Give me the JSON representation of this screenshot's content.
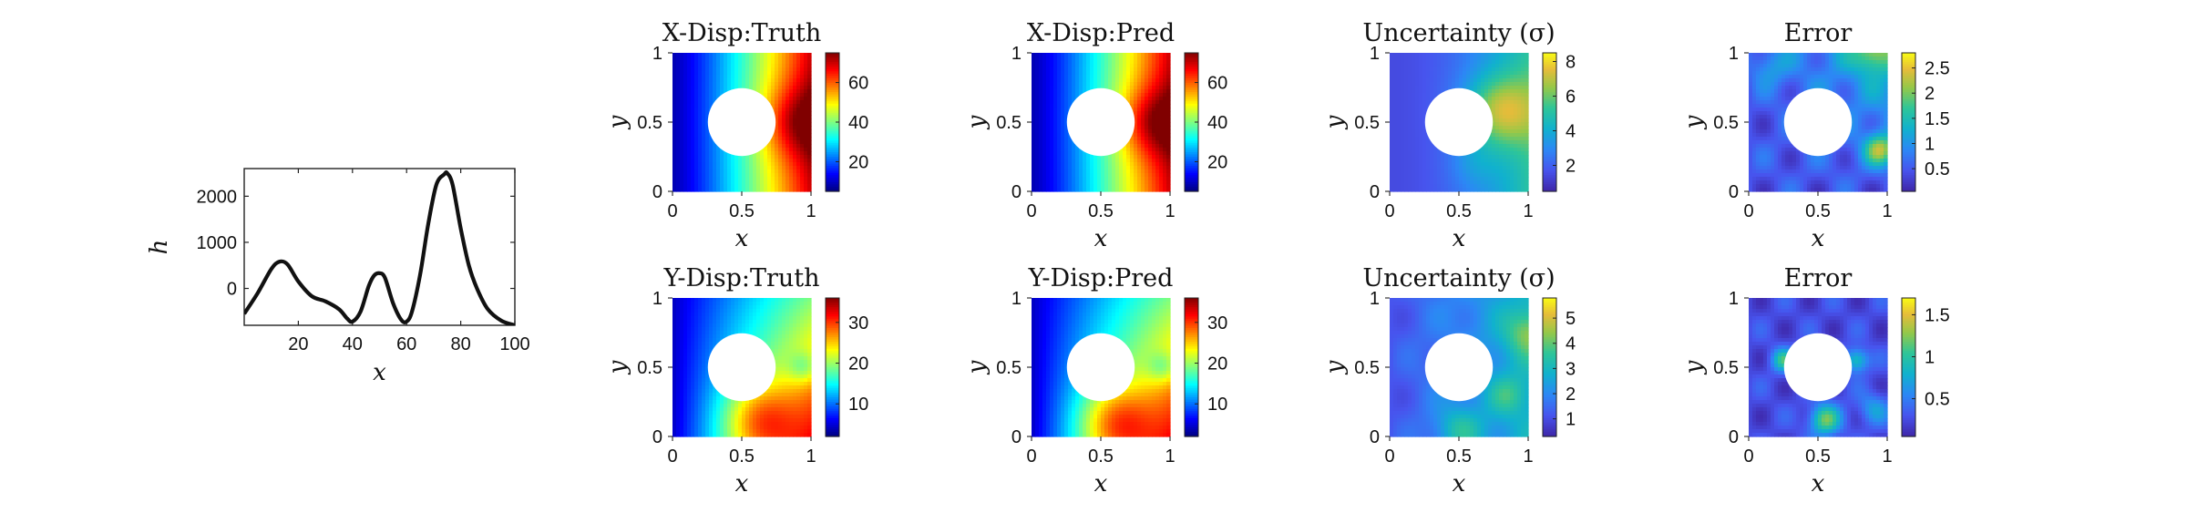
{
  "chart_data": [
    {
      "id": "h",
      "type": "line",
      "xlabel": "x",
      "ylabel": "h",
      "xlim": [
        0,
        100
      ],
      "ylim": [
        -800,
        2600
      ],
      "xticks": [
        20,
        40,
        60,
        80,
        100
      ],
      "yticks": [
        0,
        1000,
        2000
      ],
      "x": [
        0,
        5,
        10,
        13,
        16,
        20,
        25,
        30,
        35,
        38,
        40,
        43,
        46,
        48,
        50,
        52,
        55,
        58,
        60,
        62,
        65,
        68,
        71,
        74,
        75,
        77,
        80,
        83,
        86,
        90,
        95,
        100
      ],
      "y": [
        -550,
        -100,
        420,
        580,
        520,
        150,
        -170,
        -280,
        -450,
        -650,
        -720,
        -500,
        50,
        280,
        330,
        230,
        -320,
        -680,
        -720,
        -500,
        300,
        1400,
        2250,
        2480,
        2500,
        2250,
        1300,
        500,
        0,
        -450,
        -700,
        -800
      ],
      "series_color": "#111111"
    },
    {
      "id": "xdisp-truth",
      "type": "heatmap",
      "title": "X-Disp:Truth",
      "xlabel": "x",
      "ylabel": "y",
      "xticks": [
        "0",
        "0.5",
        "1"
      ],
      "yticks": [
        "0",
        "0.5",
        "1"
      ],
      "colormap": "jet",
      "clim": [
        5,
        75
      ],
      "cbar_ticks": [
        20,
        40,
        60
      ],
      "field": "xtruth"
    },
    {
      "id": "xdisp-pred",
      "type": "heatmap",
      "title": "X-Disp:Pred",
      "xlabel": "x",
      "ylabel": "y",
      "xticks": [
        "0",
        "0.5",
        "1"
      ],
      "yticks": [
        "0",
        "0.5",
        "1"
      ],
      "colormap": "jet",
      "clim": [
        5,
        75
      ],
      "cbar_ticks": [
        20,
        40,
        60
      ],
      "field": "xpred"
    },
    {
      "id": "xdisp-sigma",
      "type": "heatmap",
      "title": "Uncertainty (σ)",
      "xlabel": "x",
      "ylabel": "y",
      "xticks": [
        "0",
        "0.5",
        "1"
      ],
      "yticks": [
        "0",
        "0.5",
        "1"
      ],
      "colormap": "parula",
      "clim": [
        0.5,
        8.5
      ],
      "cbar_ticks": [
        2,
        4,
        6,
        8
      ],
      "field": "xsigma"
    },
    {
      "id": "xdisp-error",
      "type": "heatmap",
      "title": "Error",
      "xlabel": "x",
      "ylabel": "y",
      "xticks": [
        "0",
        "0.5",
        "1"
      ],
      "yticks": [
        "0",
        "0.5",
        "1"
      ],
      "colormap": "parula",
      "clim": [
        0.05,
        2.8
      ],
      "cbar_ticks": [
        0.5,
        1,
        1.5,
        2,
        2.5
      ],
      "field": "xerror"
    },
    {
      "id": "ydisp-truth",
      "type": "heatmap",
      "title": "Y-Disp:Truth",
      "xlabel": "x",
      "ylabel": "y",
      "xticks": [
        "0",
        "0.5",
        "1"
      ],
      "yticks": [
        "0",
        "0.5",
        "1"
      ],
      "colormap": "jet",
      "clim": [
        2,
        36
      ],
      "cbar_ticks": [
        10,
        20,
        30
      ],
      "field": "ytruth"
    },
    {
      "id": "ydisp-pred",
      "type": "heatmap",
      "title": "Y-Disp:Pred",
      "xlabel": "x",
      "ylabel": "y",
      "xticks": [
        "0",
        "0.5",
        "1"
      ],
      "yticks": [
        "0",
        "0.5",
        "1"
      ],
      "colormap": "jet",
      "clim": [
        2,
        36
      ],
      "cbar_ticks": [
        10,
        20,
        30
      ],
      "field": "ypred"
    },
    {
      "id": "ydisp-sigma",
      "type": "heatmap",
      "title": "Uncertainty (σ)",
      "xlabel": "x",
      "ylabel": "y",
      "xticks": [
        "0",
        "0.5",
        "1"
      ],
      "yticks": [
        "0",
        "0.5",
        "1"
      ],
      "colormap": "parula",
      "clim": [
        0.3,
        5.8
      ],
      "cbar_ticks": [
        1,
        2,
        3,
        4,
        5
      ],
      "field": "ysigma"
    },
    {
      "id": "ydisp-error",
      "type": "heatmap",
      "title": "Error",
      "xlabel": "x",
      "ylabel": "y",
      "xticks": [
        "0",
        "0.5",
        "1"
      ],
      "yticks": [
        "0",
        "0.5",
        "1"
      ],
      "colormap": "parula",
      "clim": [
        0.05,
        1.7
      ],
      "cbar_ticks": [
        0.5,
        1,
        1.5
      ],
      "field": "yerror"
    }
  ]
}
